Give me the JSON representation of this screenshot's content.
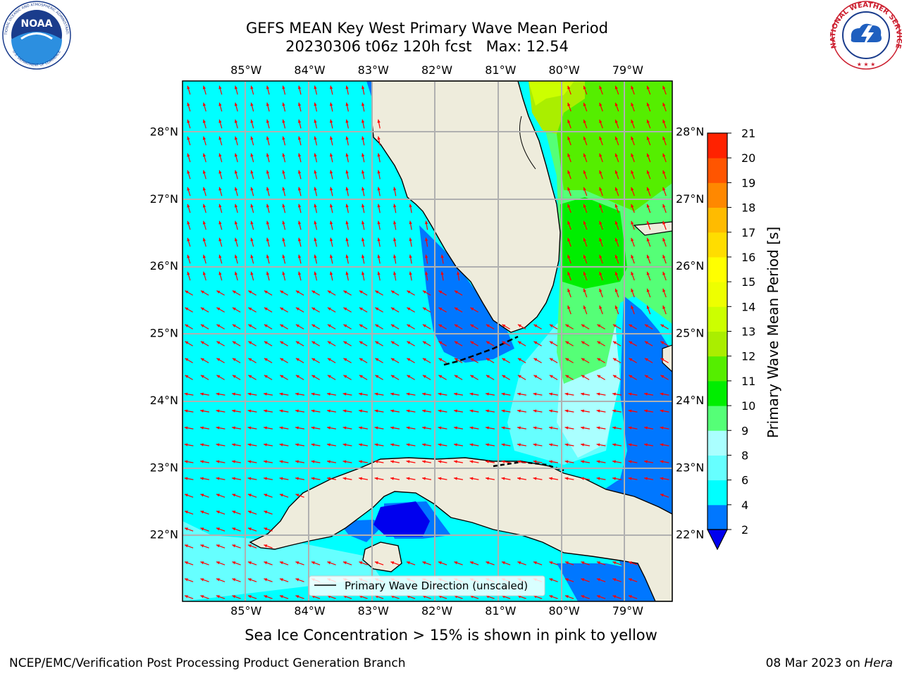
{
  "header": {
    "title_line1": "GEFS MEAN Key West Primary Wave Mean Period",
    "title_date": "20230306 t06z 120h fcst",
    "title_max": "Max: 12.54"
  },
  "logos": {
    "noaa_text": "NOAA",
    "noaa_ring_top": "NATIONAL OCEANIC AND ATMOSPHERIC ADMINISTRATION",
    "noaa_ring_bottom": "U.S. DEPARTMENT OF COMMERCE",
    "nws_ring_text": "NATIONAL WEATHER SERVICE"
  },
  "map": {
    "lon_labels": [
      "85°W",
      "84°W",
      "83°W",
      "82°W",
      "81°W",
      "80°W",
      "79°W"
    ],
    "lon_values": [
      -85,
      -84,
      -83,
      -82,
      -81,
      -80,
      -79
    ],
    "lat_labels": [
      "28°N",
      "27°N",
      "26°N",
      "25°N",
      "24°N",
      "23°N",
      "22°N"
    ],
    "lat_values": [
      28,
      27,
      26,
      25,
      24,
      23,
      22
    ],
    "extent": {
      "lon_min": -86,
      "lon_max": -78.3,
      "lat_min": 21,
      "lat_max": 28.75
    },
    "colors": {
      "land": "#eeecdc",
      "coast": "#000000",
      "grid": "#b0b0b0",
      "arrow": "#ff0000"
    },
    "legend_label": "Primary Wave Direction (unscaled)"
  },
  "colorbar": {
    "label": "Primary Wave Mean Period [s]",
    "ticks": [
      "2",
      "4",
      "6",
      "8",
      "9",
      "10",
      "11",
      "12",
      "13",
      "14",
      "15",
      "16",
      "17",
      "18",
      "19",
      "20",
      "21"
    ],
    "colors": [
      "#0077ff",
      "#00ffff",
      "#66ffff",
      "#aaffff",
      "#55ff77",
      "#00ee00",
      "#55ee00",
      "#aaee00",
      "#ccff00",
      "#eeff00",
      "#ffff00",
      "#ffdd00",
      "#ffbb00",
      "#ff8800",
      "#ff5500",
      "#ff2200"
    ],
    "under_color": "#0000ee"
  },
  "notes": {
    "sea_ice": "Sea Ice Concentration > 15% is shown in pink to yellow"
  },
  "footer": {
    "left": "NCEP/EMC/Verification Post Processing Product Generation Branch",
    "date": "08 Mar 2023 on",
    "machine": "Hera"
  }
}
